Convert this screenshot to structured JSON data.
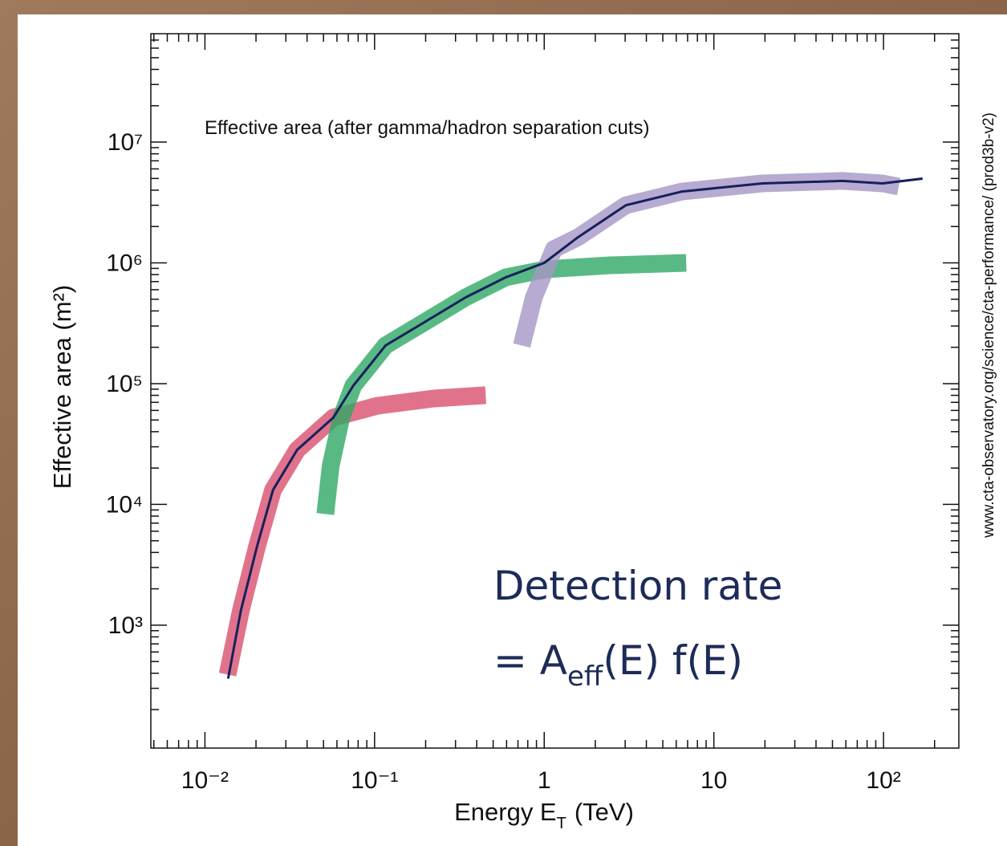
{
  "chart_data": {
    "type": "line",
    "note": "Effective area (after gamma/hadron separation cuts)",
    "source": "www.cta-observatory.org/science/cta-performance/ (prod3b-v2)",
    "ylabel": "Effective area (m²)",
    "xlabel": {
      "text": "Energy E",
      "subscript": "T",
      "unit": "(TeV)"
    },
    "annotation": {
      "line1": "Detection rate",
      "before": "= A",
      "subscript": "eff",
      "after": "(E) f(E)"
    },
    "xlog": true,
    "ylog": true,
    "xlim": [
      0.0048,
      278
    ],
    "ylim": [
      96,
      79000000
    ],
    "xticks": [
      {
        "value": 0.01,
        "label": "10⁻²"
      },
      {
        "value": 0.1,
        "label": "10⁻¹"
      },
      1,
      10,
      {
        "value": 100,
        "label": "10²"
      }
    ],
    "yticks": [
      {
        "value": 1000,
        "label": "10³"
      },
      {
        "value": 10000,
        "label": "10⁴"
      },
      {
        "value": 100000,
        "label": "10⁵"
      },
      {
        "value": 1000000,
        "label": "10⁶"
      },
      {
        "value": 10000000,
        "label": "10⁷"
      }
    ],
    "series": [
      {
        "color": "#d8506e",
        "width": 22,
        "opacity": 0.8,
        "x": [
          0.0136,
          0.0163,
          0.0203,
          0.0252,
          0.035,
          0.0571,
          0.104,
          0.223,
          0.452
        ],
        "values": [
          390,
          1330,
          4510,
          13200,
          28300,
          52300,
          65600,
          75300,
          80200
        ]
      },
      {
        "color": "#2fa865",
        "width": 22,
        "opacity": 0.8,
        "x": [
          0.0512,
          0.0551,
          0.0636,
          0.0749,
          0.116,
          0.2,
          0.344,
          0.593,
          1.02,
          2.44,
          6.87
        ],
        "values": [
          8320,
          20800,
          52300,
          96200,
          207000,
          327000,
          518000,
          759000,
          885000,
          955000,
          1000000
        ]
      },
      {
        "color": "#a596c6",
        "width": 22,
        "opacity": 0.8,
        "x": [
          0.737,
          0.868,
          1.14,
          1.58,
          3.03,
          6.5,
          19.3,
          57.4,
          98.6,
          123
        ],
        "values": [
          207000,
          518000,
          1300000,
          1630000,
          3000000,
          3900000,
          4550000,
          4770000,
          4550000,
          4280000
        ]
      },
      {
        "color": "#17205c",
        "width": 3,
        "opacity": 1,
        "x": [
          0.0137,
          0.0163,
          0.0203,
          0.0252,
          0.035,
          0.0571,
          0.0749,
          0.116,
          0.2,
          0.344,
          0.593,
          1,
          1.58,
          3.03,
          6.5,
          19.3,
          57.4,
          98.6,
          170
        ],
        "values": [
          361,
          1330,
          4510,
          13200,
          28300,
          52300,
          96200,
          207000,
          327000,
          518000,
          759000,
          1000000,
          1630000,
          3000000,
          3900000,
          4550000,
          4770000,
          4550000,
          4990000
        ]
      }
    ]
  }
}
